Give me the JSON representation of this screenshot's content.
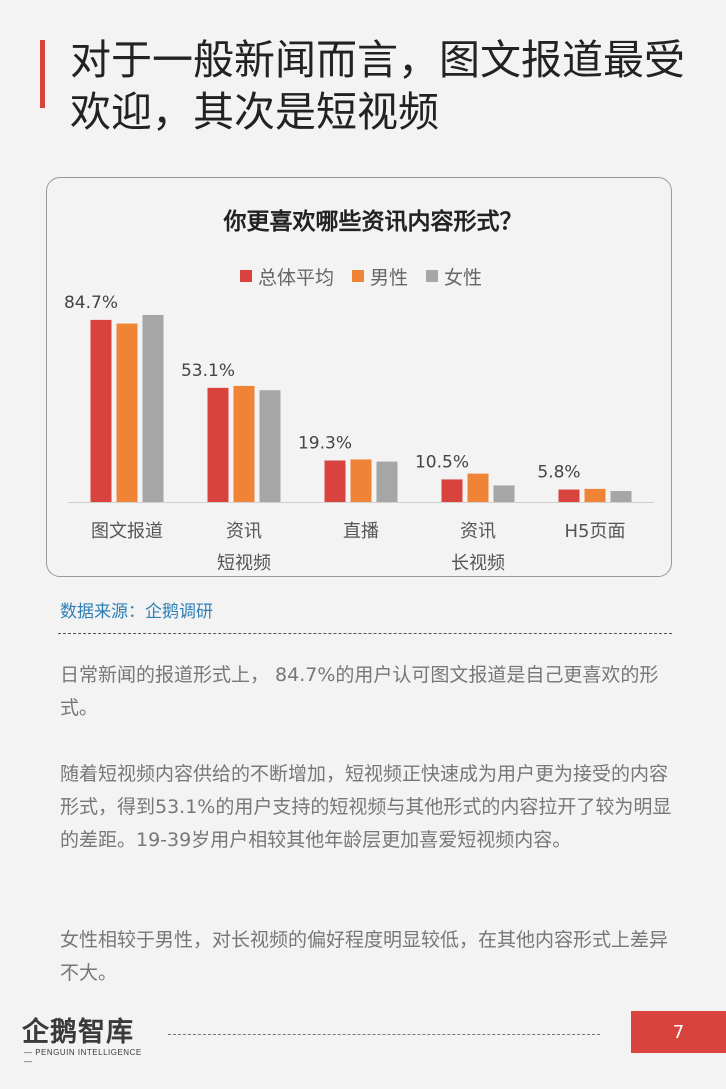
{
  "page": {
    "title": "对于一般新闻而言，图文报道最受欢迎，其次是短视频",
    "source": "数据来源：企鹅调研",
    "paragraphs": [
      "日常新闻的报道形式上， 84.7%的用户认可图文报道是自己更喜欢的形式。",
      "随着短视频内容供给的不断增加，短视频正快速成为用户更为接受的内容形式，得到53.1%的用户支持的短视频与其他形式的内容拉开了较为明显的差距。19-39岁用户相较其他年龄层更加喜爱短视频内容。",
      "女性相较于男性，对长视频的偏好程度明显较低，在其他内容形式上差异不大。"
    ],
    "logo": {
      "text": "企鹅智库",
      "subtext": "— PENGUIN INTELLIGENCE —"
    },
    "page_number": "7"
  },
  "chart_data": {
    "type": "bar",
    "title": "你更喜欢哪些资讯内容形式？",
    "categories": [
      [
        "图文报道"
      ],
      [
        "资讯",
        "短视频"
      ],
      [
        "直播"
      ],
      [
        "资讯",
        "长视频"
      ],
      [
        "H5页面"
      ]
    ],
    "series": [
      {
        "name": "总体平均",
        "color": "#d9433e",
        "values": [
          84.7,
          53.1,
          19.3,
          10.5,
          5.8
        ]
      },
      {
        "name": "男性",
        "color": "#ef8437",
        "values": [
          83.0,
          54.0,
          19.8,
          13.2,
          6.1
        ]
      },
      {
        "name": "女性",
        "color": "#a6a6a6",
        "values": [
          87.0,
          52.0,
          18.8,
          7.7,
          5.1
        ]
      }
    ],
    "data_labels": [
      "84.7%",
      "53.1%",
      "19.3%",
      "10.5%",
      "5.8%"
    ],
    "ylim": [
      0,
      100
    ],
    "legend": "top",
    "grid": false
  }
}
